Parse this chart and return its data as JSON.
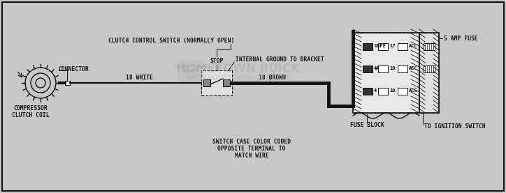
{
  "bg_color": "#d8d8d8",
  "fig_bg": "#c8c8c8",
  "line_color": "#111111",
  "label_font": 5.8,
  "label_font_small": 5.0,
  "watermark_text": "HOMETOWN BUICK",
  "watermark_url": "WWW.HOMETOWNBUICK.COM",
  "labels": {
    "clutch_control": "CLUTCH CONTROL SWITCH (NORMALLY OPEN)",
    "stop": "STOP",
    "internal_ground": "INTERNAL GROUND TO BRACKET",
    "connector": "CONNECTOR",
    "18_white": "18 WHITE",
    "18_brown": "18 BROWN",
    "compressor_clutch_1": "COMPRESSOR",
    "compressor_clutch_2": "CLUTCH COIL",
    "fuse_block": "FUSE BLOCK",
    "5_amp_fuse": "5 AMP FUSE",
    "to_ignition": "TO IGNITION SWITCH",
    "switch_case_1": "SWITCH CASE COLOR CODED",
    "switch_case_2": "OPPOSITE TERMINAL TO",
    "switch_case_3": "MATCH WIRE",
    "dope": "DOPE",
    "v17": "17",
    "acc": "ACC",
    "v4a": "4A",
    "v10": "10",
    "v4": "4"
  }
}
